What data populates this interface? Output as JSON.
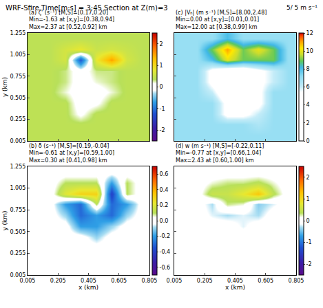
{
  "title": "WRF-Sfire Time[m:s] = 3:45 Section at Z(m)=3",
  "annotations": [
    "5/ 5 m s⁻¹"
  ],
  "chart_data": [
    {
      "type": "heatmap",
      "title": [
        "(a) ζ' (s⁻¹) [M,S]=[0.17,0.20]",
        "Min=-1.63 at [x,y]=[0.38,0.94]",
        "Max=2.37 at [0.52,0.92] km"
      ],
      "x": [
        0.055,
        0.155,
        0.255,
        0.355,
        0.455,
        0.555,
        0.655,
        0.755
      ],
      "y": [
        0.0675,
        0.1925,
        0.3175,
        0.4425,
        0.5675,
        0.6925,
        0.8175,
        0.9425,
        1.0675,
        1.1925
      ],
      "z": [
        [
          0.4,
          0.4,
          0.4,
          0.4,
          0.4,
          0.4,
          0.4,
          0.4
        ],
        [
          0.4,
          0.4,
          0.4,
          0.4,
          0.4,
          0.4,
          0.4,
          0.4
        ],
        [
          0.4,
          0.4,
          0.4,
          0.1,
          0.4,
          0.4,
          0.4,
          0.4
        ],
        [
          0.4,
          0.4,
          0.4,
          0.0,
          0.1,
          0.4,
          0.4,
          0.4
        ],
        [
          0.4,
          0.4,
          0.2,
          0.0,
          0.0,
          0.2,
          0.4,
          0.4
        ],
        [
          0.4,
          0.4,
          0.3,
          0.0,
          0.2,
          0.3,
          0.4,
          0.4
        ],
        [
          0.4,
          0.4,
          0.3,
          0.0,
          0.3,
          0.3,
          0.4,
          0.4
        ],
        [
          0.4,
          0.4,
          0.6,
          -1.2,
          0.8,
          1.5,
          0.6,
          0.4
        ],
        [
          0.4,
          0.4,
          0.6,
          0.8,
          0.5,
          0.6,
          0.5,
          0.4
        ],
        [
          0.4,
          0.4,
          0.4,
          0.4,
          0.4,
          0.4,
          0.4,
          0.4
        ]
      ],
      "colorbar_range": [
        -2.5,
        2.5
      ],
      "colorbar_ticks": [
        -2,
        -1,
        0,
        1,
        2
      ],
      "xlim": [
        0.005,
        0.805
      ],
      "ylim": [
        0.005,
        1.255
      ],
      "xticks": [
        0.005,
        0.205,
        0.405,
        0.605,
        0.805
      ],
      "yticks": [
        0.005,
        0.255,
        0.505,
        0.755,
        1.005,
        1.255
      ],
      "ylabel": "y (km)",
      "tick_labels": "y"
    },
    {
      "type": "heatmap",
      "title": [
        "(c) |Vₕ| (m s⁻¹) [M,S]=[8.00,2.48]",
        "Min=0.00 at [x,y]=[0.01,0.01]",
        "Max=12.00 at [0.38,0.99] km"
      ],
      "x": [
        0.055,
        0.155,
        0.255,
        0.355,
        0.455,
        0.555,
        0.655,
        0.755
      ],
      "y": [
        0.0675,
        0.1925,
        0.3175,
        0.4425,
        0.5675,
        0.6925,
        0.8175,
        0.9425,
        1.0675,
        1.1925
      ],
      "z": [
        [
          7,
          7,
          7,
          7,
          7,
          7,
          7,
          7
        ],
        [
          7,
          7,
          7,
          7,
          7,
          6.5,
          7,
          7
        ],
        [
          7,
          7,
          7,
          5,
          5,
          6,
          7,
          7
        ],
        [
          7,
          7,
          7,
          5,
          5,
          5,
          7,
          7
        ],
        [
          7,
          7,
          6,
          4,
          4,
          5,
          7,
          7
        ],
        [
          7,
          7,
          5,
          4,
          4,
          5,
          6,
          7
        ],
        [
          7,
          7,
          5,
          4,
          4,
          5,
          6,
          7
        ],
        [
          7,
          7,
          8,
          10,
          9,
          9,
          9,
          7
        ],
        [
          7,
          7,
          9,
          11,
          9,
          10,
          9,
          7
        ],
        [
          7,
          7,
          7,
          8,
          7,
          7,
          7,
          7
        ]
      ],
      "colorbar_range": [
        0,
        12
      ],
      "colorbar_ticks": [
        0,
        2,
        4,
        6,
        8,
        10,
        12
      ],
      "xlim": [
        0.005,
        0.805
      ],
      "ylim": [
        0.005,
        1.255
      ],
      "xticks": [
        0.005,
        0.205,
        0.405,
        0.605,
        0.805
      ],
      "yticks": [
        0.005,
        0.255,
        0.505,
        0.755,
        1.005,
        1.255
      ],
      "tick_labels": false
    },
    {
      "type": "heatmap",
      "title": [
        "(b) δ (s⁻¹) [M,S]=[0.19,-0.04]",
        "Min=-0.61 at [x,y]=[0.59,1.00]",
        "Max=0.30 at [0.41,0.98] km"
      ],
      "x": [
        0.055,
        0.155,
        0.255,
        0.355,
        0.455,
        0.555,
        0.655,
        0.755
      ],
      "y": [
        0.0675,
        0.1925,
        0.3175,
        0.4425,
        0.5675,
        0.6925,
        0.8175,
        0.9425,
        1.0675,
        1.1925
      ],
      "z": [
        [
          0,
          0,
          0,
          0,
          0,
          0,
          0,
          0
        ],
        [
          0,
          0,
          0,
          0,
          0,
          0,
          0,
          0
        ],
        [
          0,
          0,
          0,
          0,
          0,
          0,
          0,
          0
        ],
        [
          0,
          0,
          0,
          0,
          -0.1,
          0,
          0,
          0
        ],
        [
          0,
          0,
          0,
          -0.2,
          -0.2,
          -0.1,
          0,
          0
        ],
        [
          0,
          0,
          -0.1,
          -0.3,
          -0.2,
          -0.3,
          -0.1,
          0
        ],
        [
          0,
          0,
          -0.2,
          -0.3,
          0.1,
          -0.3,
          -0.2,
          0
        ],
        [
          0,
          0,
          0.2,
          0.3,
          0.3,
          -0.4,
          0.1,
          0
        ],
        [
          0,
          0,
          0.1,
          0.1,
          0.1,
          -0.2,
          0.1,
          0
        ],
        [
          0,
          0,
          0,
          0,
          0,
          0,
          0,
          0
        ]
      ],
      "colorbar_range": [
        -0.7,
        0.7
      ],
      "colorbar_ticks": [
        -0.6,
        -0.4,
        -0.2,
        {
          "value": 0,
          "label": "0.0"
        },
        0.2,
        0.4,
        0.6
      ],
      "xlim": [
        0.005,
        0.805
      ],
      "ylim": [
        0.005,
        1.255
      ],
      "xticks": [
        0.005,
        0.205,
        0.405,
        0.605,
        0.805
      ],
      "yticks": [
        0.005,
        0.255,
        0.505,
        0.755,
        1.005,
        1.255
      ],
      "xlabel": "x (km)",
      "ylabel": "y (km)"
    },
    {
      "type": "heatmap",
      "title": [
        "(d) w (m s⁻¹) [M,S]=[-0.22,0.11]",
        "Min=-0.77 at [x,y]=[0.66,1.04]",
        "Max=2.43 at [0.60,1.00] km"
      ],
      "x": [
        0.055,
        0.155,
        0.255,
        0.355,
        0.455,
        0.555,
        0.655,
        0.755
      ],
      "y": [
        0.0675,
        0.1925,
        0.3175,
        0.4425,
        0.5675,
        0.6925,
        0.8175,
        0.9425,
        1.0675,
        1.1925
      ],
      "z": [
        [
          0,
          0,
          0,
          0,
          0,
          0,
          0,
          0
        ],
        [
          0,
          0,
          0,
          0,
          0,
          0,
          0,
          0
        ],
        [
          0,
          0,
          0,
          0,
          0,
          0,
          0,
          0
        ],
        [
          0,
          0,
          0,
          0,
          0,
          0,
          0,
          0
        ],
        [
          0,
          0,
          0,
          0,
          -0.2,
          0,
          0,
          0
        ],
        [
          0,
          0,
          -0.2,
          -0.3,
          -0.2,
          -0.3,
          0,
          0
        ],
        [
          0,
          0,
          -0.3,
          0.3,
          0.2,
          -0.4,
          -0.2,
          0
        ],
        [
          0,
          0,
          0.5,
          0.5,
          0.8,
          1.2,
          0.4,
          0
        ],
        [
          0,
          0,
          0.2,
          0.3,
          0.3,
          0.4,
          0.2,
          0
        ],
        [
          0,
          0,
          0,
          0,
          0,
          0,
          0,
          0
        ]
      ],
      "colorbar_range": [
        -2.5,
        2.5
      ],
      "colorbar_ticks": [
        -2,
        -1,
        0,
        1,
        2
      ],
      "xlim": [
        0.005,
        0.805
      ],
      "ylim": [
        0.005,
        1.255
      ],
      "xticks": [
        0.005,
        0.205,
        0.405,
        0.605,
        0.805
      ],
      "yticks": [
        0.005,
        0.255,
        0.505,
        0.755,
        1.005,
        1.255
      ],
      "xlabel": "x (km)",
      "tick_labels": "x"
    }
  ]
}
